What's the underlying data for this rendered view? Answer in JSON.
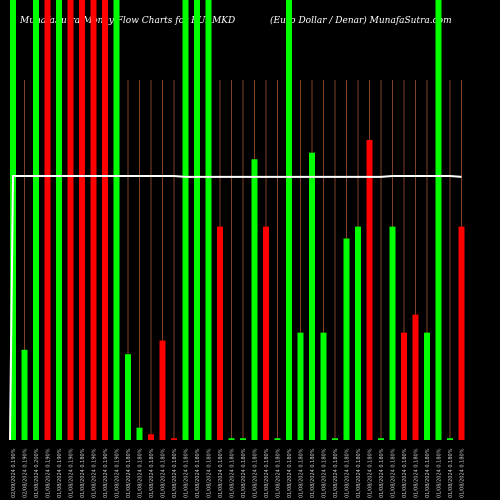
{
  "header": {
    "title_left": "MunafaSutra  Money Flow  Charts for EURMKD",
    "title_right": "(Euro  Dollar / Denar)  MunafaSutra.com"
  },
  "colors": {
    "up": "#00ff00",
    "down": "#ff0000",
    "grid": "#a0522d",
    "line": "#ffffff",
    "background": "#000000"
  },
  "chart_data": {
    "type": "bar",
    "ylim": [
      0,
      100
    ],
    "categories": [
      "02/09/2024",
      "02/08/2024",
      "01/08/2024",
      "01/08/2024",
      "01/08/2024",
      "01/08/2024",
      "01/08/2024",
      "01/08/2024",
      "01/08/2024",
      "01/08/2024",
      "01/08/2024",
      "01/08/2024",
      "01/08/2024",
      "01/08/2024",
      "01/08/2024",
      "01/08/2024",
      "01/08/2024",
      "01/08/2024",
      "01/08/2024",
      "01/08/2024",
      "01/08/2024",
      "01/08/2024",
      "01/08/2024",
      "01/08/2024",
      "01/08/2024",
      "01/08/2024",
      "01/08/2024",
      "01/08/2024",
      "01/08/2024",
      "01/08/2024",
      "01/08/2024",
      "01/08/2024",
      "01/08/2024",
      "01/08/2024",
      "01/08/2024",
      "01/08/2024",
      "01/08/2024",
      "01/08/2024",
      "01/08/2024",
      "01/08/2024"
    ],
    "tick_values": [
      "0.190%",
      "0.190%",
      "0.200%",
      "0.190%",
      "0.190%",
      "0.190%",
      "0.180%",
      "0.190%",
      "0.190%",
      "0.190%",
      "0.180%",
      "0.180%",
      "0.180%",
      "0.180%",
      "0.180%",
      "0.180%",
      "0.180%",
      "0.180%",
      "0.180%",
      "0.180%",
      "0.180%",
      "0.180%",
      "0.180%",
      "0.180%",
      "0.180%",
      "0.180%",
      "0.180%",
      "0.180%",
      "0.180%",
      "0.180%",
      "0.180%",
      "0.180%",
      "0.180%",
      "0.180%",
      "0.180%",
      "0.180%",
      "0.180%",
      "0.180%",
      "0.180%",
      "0.180%"
    ],
    "values": [
      100,
      20.5,
      100,
      100,
      100,
      100,
      100,
      100,
      100,
      100,
      19.5,
      2.8,
      1.3,
      22.6,
      0.4,
      100,
      100,
      100,
      48.5,
      0.4,
      0.4,
      63.8,
      48.5,
      0.4,
      100,
      24.4,
      65.3,
      24.4,
      0.4,
      45.8,
      48.5,
      68.2,
      0.4,
      48.5,
      24.4,
      28.5,
      24.4,
      100,
      0.4,
      48.5
    ],
    "directions": [
      "up",
      "up",
      "up",
      "down",
      "up",
      "down",
      "down",
      "down",
      "down",
      "up",
      "up",
      "up",
      "down",
      "down",
      "down",
      "up",
      "up",
      "up",
      "down",
      "up",
      "up",
      "up",
      "down",
      "up",
      "up",
      "up",
      "up",
      "up",
      "up",
      "up",
      "up",
      "down",
      "up",
      "up",
      "down",
      "down",
      "up",
      "up",
      "up",
      "down"
    ],
    "line": [
      60,
      60,
      60,
      60,
      60,
      60,
      60,
      60,
      60,
      60,
      60,
      60,
      60,
      60,
      60,
      59.8,
      59.8,
      59.8,
      59.8,
      59.8,
      59.8,
      59.8,
      59.8,
      59.8,
      59.8,
      59.8,
      59.8,
      59.8,
      59.8,
      59.8,
      59.8,
      59.8,
      59.8,
      60,
      60,
      60,
      60,
      60,
      60,
      59.8
    ],
    "line_start": 0
  }
}
